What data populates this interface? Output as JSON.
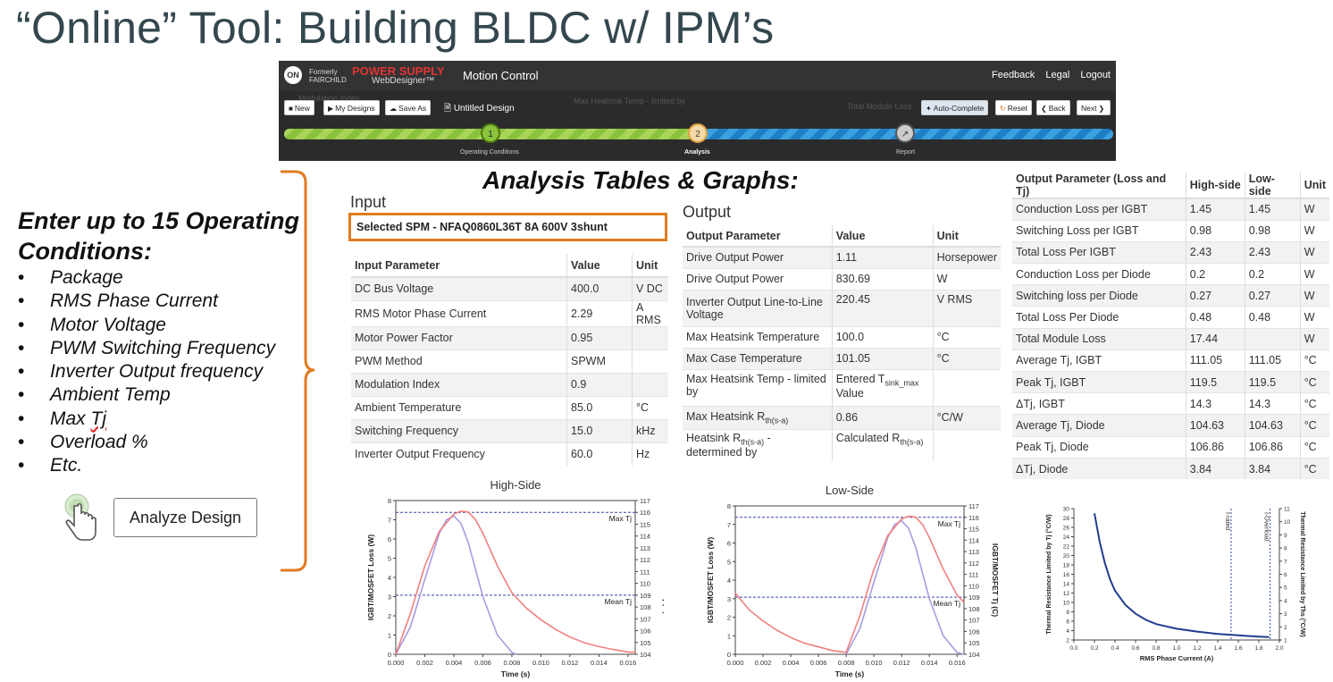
{
  "slide": {
    "title": "“Online” Tool: Building BLDC w/ IPM’s",
    "analysis_title": "Analysis Tables & Graphs:",
    "enter_title": "Enter up to 15 Operating Conditions:",
    "conditions": [
      "Package",
      "RMS Phase Current",
      "Motor Voltage",
      "PWM Switching Frequency",
      "Inverter Output frequency",
      "Ambient Temp",
      "Max Tj",
      "Overload %",
      "Etc."
    ],
    "bullet": "•",
    "analyze_button": "Analyze Design"
  },
  "app": {
    "logo_text": "ON",
    "formerly_text": "Formerly FAIRCHILD",
    "brand": "POWER SUPPLY",
    "brand_sub": "WebDesigner™",
    "name": "Motion Control",
    "links": [
      "Feedback",
      "Legal",
      "Logout"
    ],
    "buttons": {
      "new": "New",
      "my_designs": "My Designs",
      "save_as": "Save As",
      "auto_complete": "Auto-Complete",
      "reset": "Reset",
      "back": "Back",
      "next": "Next"
    },
    "design_name": "Untitled Design",
    "steps": [
      {
        "num": "1",
        "label": "Operating Conditions"
      },
      {
        "num": "2",
        "label": "Analysis"
      },
      {
        "num": "",
        "label": "Report"
      }
    ],
    "colors": {
      "brand": "#e03434",
      "progress_done": "#8ac23c",
      "progress_todo": "#1e7fc4",
      "accent": "#e07b20"
    }
  },
  "input_section": {
    "title": "Input",
    "selected_spm": "Selected SPM - NFAQ0860L36T 8A 600V 3shunt",
    "headers": [
      "Input Parameter",
      "Value",
      "Unit"
    ],
    "rows": [
      [
        "DC Bus Voltage",
        "400.0",
        "V DC"
      ],
      [
        "RMS Motor Phase Current",
        "2.29",
        "A RMS"
      ],
      [
        "Motor Power Factor",
        "0.95",
        ""
      ],
      [
        "PWM Method",
        "SPWM",
        ""
      ],
      [
        "Modulation Index",
        "0.9",
        ""
      ],
      [
        "Ambient Temperature",
        "85.0",
        "°C"
      ],
      [
        "Switching Frequency",
        "15.0",
        "kHz"
      ],
      [
        "Inverter Output Frequency",
        "60.0",
        "Hz"
      ]
    ]
  },
  "output_section": {
    "title": "Output",
    "headers": [
      "Output Parameter",
      "Value",
      "Unit"
    ],
    "rows": [
      [
        "Drive Output Power",
        "1.11",
        "Horsepower"
      ],
      [
        "Drive Output Power",
        "830.69",
        "W"
      ],
      [
        "Inverter Output Line-to-Line Voltage",
        "220.45",
        "V RMS"
      ],
      [
        "Max Heatsink Temperature",
        "100.0",
        "°C"
      ],
      [
        "Max Case Temperature",
        "101.05",
        "°C"
      ],
      [
        "Max Heatsink Temp - limited by",
        "Entered T",
        "sink_max",
        " Value",
        ""
      ],
      [
        "Max Heatsink R",
        "th(s-a)",
        "0.86",
        "°C/W"
      ],
      [
        "Heatsink R",
        "th(s-a)",
        " - determined by",
        "Calculated R",
        "th(s-a)"
      ]
    ]
  },
  "loss_table": {
    "headers": [
      "Output Parameter (Loss and Tj)",
      "High-side",
      "Low-side",
      "Unit"
    ],
    "rows": [
      [
        "Conduction Loss per IGBT",
        "1.45",
        "1.45",
        "W"
      ],
      [
        "Switching Loss per IGBT",
        "0.98",
        "0.98",
        "W"
      ],
      [
        "Total Loss Per IGBT",
        "2.43",
        "2.43",
        "W"
      ],
      [
        "Conduction Loss per Diode",
        "0.2",
        "0.2",
        "W"
      ],
      [
        "Switching loss per Diode",
        "0.27",
        "0.27",
        "W"
      ],
      [
        "Total Loss Per Diode",
        "0.48",
        "0.48",
        "W"
      ],
      [
        "Total Module Loss",
        "17.44",
        "",
        "W"
      ],
      [
        "Average Tj, IGBT",
        "111.05",
        "111.05",
        "°C"
      ],
      [
        "Peak Tj, IGBT",
        "119.5",
        "119.5",
        "°C"
      ],
      [
        "ΔTj, IGBT",
        "14.3",
        "14.3",
        "°C"
      ],
      [
        "Average Tj, Diode",
        "104.63",
        "104.63",
        "°C"
      ],
      [
        "Peak Tj, Diode",
        "106.86",
        "106.86",
        "°C"
      ],
      [
        "ΔTj, Diode",
        "3.84",
        "3.84",
        "°C"
      ]
    ]
  },
  "chart_data": [
    {
      "type": "line",
      "title": "High-Side",
      "xlabel": "Time (s)",
      "ylabel": "IGBT/MOSFET Loss (W)",
      "y2label": "IGBT/MOSFET Tj (C)",
      "xlim": [
        0,
        0.0165
      ],
      "ylim": [
        0,
        8
      ],
      "y2lim": [
        104,
        117
      ],
      "xticks": [
        "0.000",
        "0.002",
        "0.004",
        "0.006",
        "0.008",
        "0.010",
        "0.012",
        "0.014",
        "0.016"
      ],
      "yticks": [
        "0",
        "1",
        "2",
        "3",
        "4",
        "5",
        "6",
        "7",
        "8"
      ],
      "y2ticks": [
        "104",
        "105",
        "106",
        "107",
        "108",
        "109",
        "110",
        "111",
        "112",
        "113",
        "114",
        "115",
        "116",
        "117"
      ],
      "ref_lines": [
        {
          "label": "Max Tj",
          "y2": 116
        },
        {
          "label": "Mean Tj",
          "y2": 109
        }
      ],
      "series": [
        {
          "color": "#a99be0",
          "x": [
            0,
            0.001,
            0.002,
            0.003,
            0.0035,
            0.004,
            0.0045,
            0.005,
            0.006,
            0.007,
            0.008,
            0.0083
          ],
          "y": [
            0,
            1.4,
            3.9,
            6.3,
            7.0,
            7.2,
            6.8,
            5.8,
            3.0,
            1.0,
            0.1,
            0
          ]
        },
        {
          "color": "#f08080",
          "x": [
            0,
            0.001,
            0.002,
            0.003,
            0.004,
            0.0045,
            0.005,
            0.0055,
            0.006,
            0.007,
            0.008,
            0.009,
            0.01,
            0.011,
            0.012,
            0.013,
            0.014,
            0.015,
            0.016,
            0.0165
          ],
          "y": [
            0,
            2.1,
            4.6,
            6.4,
            7.3,
            7.45,
            7.4,
            7.0,
            6.3,
            4.6,
            3.2,
            2.4,
            1.8,
            1.3,
            0.9,
            0.6,
            0.4,
            0.25,
            0.12,
            0.1
          ]
        }
      ]
    },
    {
      "type": "line",
      "title": "Low-Side",
      "xlabel": "Time (s)",
      "ylabel": "IGBT/MOSFET Loss (W)",
      "y2label": "IGBT/MOSFET Tj (C)",
      "xlim": [
        0,
        0.0165
      ],
      "ylim": [
        0,
        8
      ],
      "y2lim": [
        104,
        117
      ],
      "xticks": [
        "0.000",
        "0.002",
        "0.004",
        "0.006",
        "0.008",
        "0.010",
        "0.012",
        "0.014",
        "0.016"
      ],
      "yticks": [
        "0",
        "1",
        "2",
        "3",
        "4",
        "5",
        "6",
        "7",
        "8"
      ],
      "y2ticks": [
        "104",
        "105",
        "106",
        "107",
        "108",
        "109",
        "110",
        "111",
        "112",
        "113",
        "114",
        "115",
        "116",
        "117"
      ],
      "ref_lines": [
        {
          "label": "Max Tj",
          "y2": 116
        },
        {
          "label": "Mean Tj",
          "y2": 109
        }
      ],
      "series": [
        {
          "color": "#a99be0",
          "x": [
            0.008,
            0.009,
            0.01,
            0.011,
            0.0115,
            0.012,
            0.0125,
            0.013,
            0.014,
            0.015,
            0.016,
            0.0165
          ],
          "y": [
            0,
            1.4,
            3.9,
            6.3,
            7.0,
            7.2,
            6.8,
            5.8,
            3.0,
            1.0,
            0.1,
            0
          ]
        },
        {
          "color": "#f08080",
          "x": [
            0,
            0.001,
            0.002,
            0.003,
            0.004,
            0.005,
            0.006,
            0.007,
            0.008,
            0.009,
            0.01,
            0.011,
            0.012,
            0.0125,
            0.013,
            0.0135,
            0.014,
            0.015,
            0.016,
            0.0165
          ],
          "y": [
            3.3,
            2.4,
            1.8,
            1.3,
            0.9,
            0.6,
            0.4,
            0.2,
            0.1,
            2.1,
            4.6,
            6.4,
            7.3,
            7.45,
            7.4,
            7.0,
            6.3,
            4.6,
            3.2,
            2.8
          ]
        }
      ]
    },
    {
      "type": "line",
      "title": "",
      "xlabel": "RMS Phase Current (A)",
      "ylabel": "Thermal Resistance Limited by Tj (°C/W)",
      "y2label": "Thermal Resistance Limited by Ths (°C/W)",
      "xlim": [
        0,
        2.0
      ],
      "ylim": [
        0,
        30
      ],
      "y2lim": [
        1,
        11
      ],
      "xticks": [
        "0.0",
        "0.2",
        "0.4",
        "0.6",
        "0.8",
        "1.0",
        "1.2",
        "1.4",
        "1.6",
        "1.8",
        "2.0"
      ],
      "yticks": [
        "2",
        "4",
        "6",
        "8",
        "10",
        "12",
        "14",
        "16",
        "18",
        "20",
        "22",
        "24",
        "26",
        "28",
        "30"
      ],
      "y2ticks": [
        "1",
        "2",
        "3",
        "4",
        "5",
        "6",
        "7",
        "8",
        "9",
        "10",
        "11"
      ],
      "vlines": [
        {
          "label": "I-rated",
          "x": 1.53
        },
        {
          "label": "I-Overload",
          "x": 1.91
        }
      ],
      "series": [
        {
          "color": "#1f3d8c",
          "x": [
            0.2,
            0.25,
            0.3,
            0.35,
            0.4,
            0.5,
            0.6,
            0.7,
            0.8,
            1.0,
            1.2,
            1.4,
            1.6,
            1.8,
            1.9
          ],
          "y": [
            29,
            23,
            18.5,
            15,
            12.5,
            9.5,
            7.6,
            6.3,
            5.4,
            4.4,
            3.8,
            3.3,
            3.0,
            2.7,
            2.6
          ]
        }
      ]
    }
  ]
}
